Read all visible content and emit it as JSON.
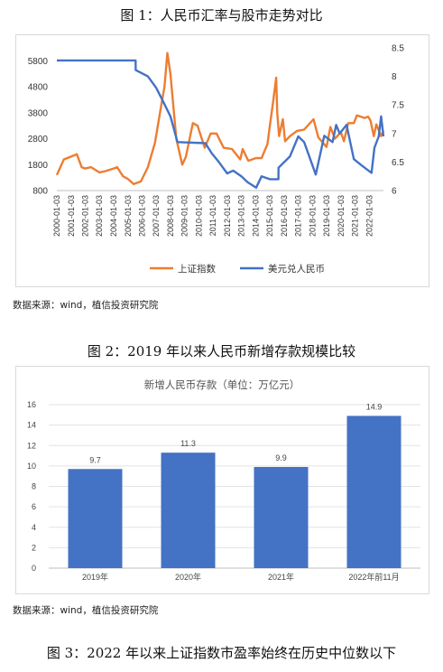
{
  "fig1": {
    "title": "图 1：人民币汇率与股市走势对比",
    "source": "数据来源：wind，植信投资研究院"
  },
  "fig2": {
    "title": "图 2：2019 年以来人民币新增存款规模比较",
    "source": "数据来源：wind，植信投资研究院"
  },
  "fig3": {
    "title": "图 3：2022 年以来上证指数市盈率始终在历史中位数以下"
  },
  "chart_data": [
    {
      "type": "line",
      "title": "",
      "x_axis": {
        "type": "date",
        "ticks": [
          "2000-01-03",
          "2001-01-03",
          "2002-01-03",
          "2003-01-03",
          "2004-01-03",
          "2005-01-03",
          "2006-01-03",
          "2007-01-03",
          "2008-01-03",
          "2009-01-03",
          "2010-01-03",
          "2011-01-03",
          "2012-01-03",
          "2013-01-03",
          "2014-01-03",
          "2015-01-03",
          "2016-01-03",
          "2017-01-03",
          "2018-01-03",
          "2019-01-03",
          "2020-01-03",
          "2021-01-03",
          "2022-01-03"
        ],
        "range": [
          "2000-01-03",
          "2022-12-31"
        ]
      },
      "y_left": {
        "ticks": [
          800,
          1800,
          2800,
          3800,
          4800,
          5800
        ],
        "ylim": [
          800,
          6300
        ]
      },
      "y_right": {
        "ticks": [
          "6",
          "6.5",
          "7",
          "7.5",
          "8",
          "8.5"
        ],
        "ylim": [
          6,
          8.5
        ]
      },
      "legend_position": "bottom",
      "grid": false,
      "series": [
        {
          "name": "上证指数",
          "axis": "left",
          "color": "#ED7D31",
          "x": [
            "2000-01-03",
            "2000-07-01",
            "2001-06-01",
            "2001-10-01",
            "2002-01-01",
            "2002-06-01",
            "2003-01-01",
            "2003-06-01",
            "2004-01-01",
            "2004-04-01",
            "2004-09-01",
            "2005-01-01",
            "2005-06-01",
            "2005-12-01",
            "2006-06-01",
            "2006-12-01",
            "2007-05-01",
            "2007-08-01",
            "2007-10-16",
            "2008-01-01",
            "2008-06-01",
            "2008-11-01",
            "2009-02-01",
            "2009-08-01",
            "2009-12-01",
            "2010-06-01",
            "2010-11-01",
            "2011-04-01",
            "2011-10-01",
            "2012-05-01",
            "2012-12-01",
            "2013-02-01",
            "2013-06-25",
            "2014-01-01",
            "2014-06-01",
            "2014-11-01",
            "2015-01-01",
            "2015-04-01",
            "2015-06-12",
            "2015-07-10",
            "2015-08-26",
            "2015-12-01",
            "2016-01-28",
            "2016-06-01",
            "2016-12-01",
            "2017-06-01",
            "2018-01-29",
            "2018-06-01",
            "2018-12-28",
            "2019-04-08",
            "2019-08-01",
            "2020-01-01",
            "2020-03-19",
            "2020-07-07",
            "2020-12-01",
            "2021-02-18",
            "2021-09-01",
            "2021-12-01",
            "2022-02-01",
            "2022-04-27",
            "2022-07-01",
            "2022-10-31",
            "2022-12-31"
          ],
          "values": [
            1400,
            2000,
            2200,
            1700,
            1650,
            1700,
            1500,
            1550,
            1650,
            1700,
            1350,
            1250,
            1050,
            1150,
            1700,
            2650,
            4000,
            4800,
            6100,
            5300,
            2800,
            1800,
            2100,
            3400,
            3300,
            2450,
            3000,
            3000,
            2450,
            2400,
            2000,
            2400,
            1950,
            2050,
            2050,
            2600,
            3300,
            4300,
            5150,
            3800,
            2900,
            3550,
            2700,
            2900,
            3100,
            3150,
            3550,
            2850,
            2480,
            3250,
            2800,
            3050,
            2700,
            3400,
            3400,
            3700,
            3600,
            3650,
            3500,
            2900,
            3350,
            2900,
            3100
          ]
        },
        {
          "name": "美元兑人民币",
          "axis": "right",
          "color": "#4472C4",
          "x": [
            "2000-01-03",
            "2005-07-20",
            "2005-07-22",
            "2006-06-01",
            "2007-01-01",
            "2007-06-01",
            "2008-01-01",
            "2008-07-01",
            "2010-06-18",
            "2010-12-01",
            "2011-06-01",
            "2012-01-01",
            "2012-06-01",
            "2013-01-01",
            "2013-06-01",
            "2014-01-14",
            "2014-06-01",
            "2015-01-01",
            "2015-08-10",
            "2015-08-13",
            "2016-06-01",
            "2016-12-31",
            "2017-06-01",
            "2018-03-26",
            "2018-10-31",
            "2019-06-01",
            "2019-09-03",
            "2019-12-01",
            "2020-05-27",
            "2020-12-01",
            "2021-06-01",
            "2022-02-28",
            "2022-05-13",
            "2022-09-01",
            "2022-10-31",
            "2022-12-31"
          ],
          "values": [
            8.28,
            8.28,
            8.11,
            8.0,
            7.8,
            7.6,
            7.3,
            6.85,
            6.83,
            6.65,
            6.5,
            6.3,
            6.35,
            6.25,
            6.15,
            6.05,
            6.25,
            6.2,
            6.2,
            6.4,
            6.6,
            6.95,
            6.85,
            6.28,
            6.96,
            6.85,
            7.15,
            7.0,
            7.15,
            6.55,
            6.45,
            6.31,
            6.75,
            6.95,
            7.3,
            6.95
          ]
        }
      ]
    },
    {
      "type": "bar",
      "title": "新增人民币存款（单位：万亿元）",
      "categories": [
        "2019年",
        "2020年",
        "2021年",
        "2022年前11月"
      ],
      "values": [
        9.7,
        11.3,
        9.9,
        14.9
      ],
      "data_labels": [
        "9.7",
        "11.3",
        "9.9",
        "14.9"
      ],
      "yticks": [
        "0",
        "2",
        "4",
        "6",
        "8",
        "10",
        "12",
        "14",
        "16"
      ],
      "ylim": [
        0,
        16
      ],
      "bar_color": "#4472C4",
      "grid": true
    }
  ]
}
